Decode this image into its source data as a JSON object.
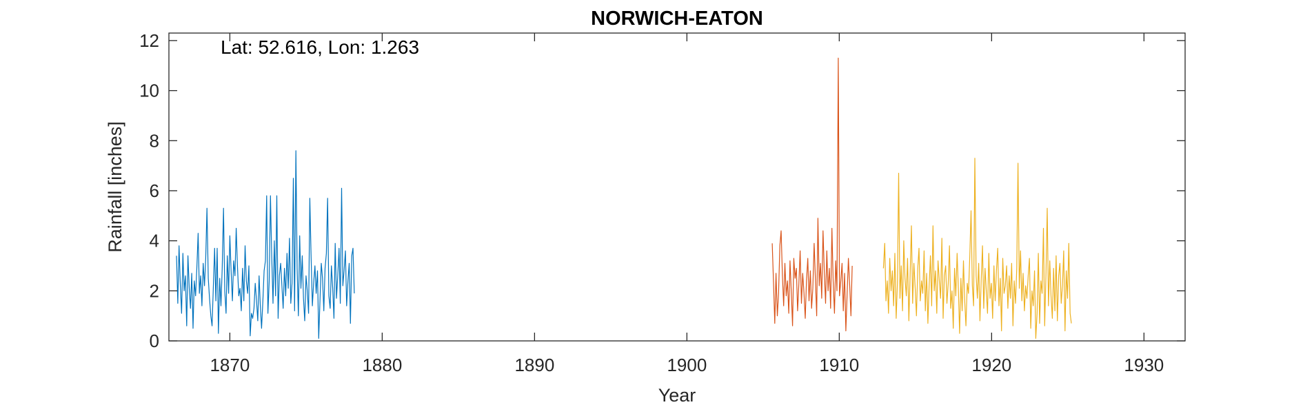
{
  "chart_data": {
    "type": "line",
    "title": "NORWICH-EATON",
    "xlabel": "Year",
    "ylabel": "Rainfall [inches]",
    "annotation": "Lat: 52.616, Lon: 1.263",
    "xlim": [
      1866,
      1932.7
    ],
    "ylim": [
      0,
      12.3
    ],
    "xticks": [
      1870,
      1880,
      1890,
      1900,
      1910,
      1920,
      1930
    ],
    "yticks": [
      0,
      2,
      4,
      6,
      8,
      10,
      12
    ],
    "grid": false,
    "series": [
      {
        "color": "#0072BD",
        "x_start": 1866.5,
        "x_step": 0.083333,
        "values": [
          3.4,
          1.5,
          3.8,
          2.2,
          1.1,
          3.5,
          2.0,
          2.6,
          0.6,
          3.4,
          2.1,
          1.3,
          2.7,
          0.5,
          2.4,
          1.8,
          2.9,
          4.3,
          1.9,
          2.6,
          1.4,
          3.1,
          2.2,
          3.3,
          5.3,
          2.5,
          1.7,
          1.0,
          0.6,
          2.2,
          3.7,
          1.6,
          3.7,
          0.3,
          2.5,
          1.4,
          2.9,
          5.3,
          2.0,
          1.1,
          3.4,
          1.9,
          4.2,
          2.8,
          1.6,
          3.2,
          2.6,
          4.5,
          3.0,
          1.8,
          2.1,
          1.2,
          2.9,
          1.6,
          3.8,
          2.4,
          1.9,
          3.0,
          0.2,
          1.1,
          0.9,
          1.3,
          2.3,
          1.6,
          0.8,
          2.6,
          1.4,
          0.5,
          1.6,
          2.8,
          3.2,
          5.8,
          1.1,
          2.4,
          5.8,
          3.3,
          1.5,
          4.0,
          1.8,
          5.8,
          0.9,
          2.6,
          3.1,
          2.2,
          1.3,
          2.9,
          1.8,
          3.5,
          2.1,
          4.1,
          1.5,
          2.3,
          6.5,
          1.2,
          7.6,
          2.9,
          1.0,
          4.2,
          2.1,
          3.4,
          1.7,
          0.8,
          2.6,
          2.0,
          1.1,
          5.7,
          3.3,
          1.4,
          2.3,
          3.0,
          1.9,
          2.8,
          0.1,
          1.6,
          3.1,
          2.5,
          1.2,
          2.9,
          3.5,
          5.7,
          1.8,
          1.3,
          3.0,
          2.1,
          0.9,
          3.9,
          1.7,
          2.6,
          3.7,
          1.5,
          6.1,
          2.2,
          2.8,
          3.6,
          1.4,
          2.4,
          3.1,
          0.7,
          3.4,
          3.7,
          1.9
        ]
      },
      {
        "color": "#D95319",
        "x_start": 1905.6,
        "x_step": 0.083333,
        "values": [
          3.9,
          2.3,
          0.7,
          2.7,
          1.0,
          1.9,
          3.8,
          4.4,
          2.6,
          1.4,
          3.1,
          1.8,
          2.4,
          1.1,
          3.2,
          2.0,
          0.6,
          3.3,
          2.5,
          2.9,
          1.2,
          2.3,
          3.6,
          1.5,
          2.7,
          1.9,
          0.9,
          2.4,
          3.3,
          1.6,
          2.8,
          1.3,
          2.1,
          3.9,
          2.5,
          1.0,
          4.9,
          2.2,
          3.1,
          1.7,
          4.4,
          2.8,
          1.5,
          3.6,
          2.0,
          2.9,
          1.3,
          4.5,
          2.4,
          1.1,
          3.2,
          2.0,
          11.3,
          1.8,
          2.4,
          3.1,
          1.2,
          2.7,
          0.4,
          1.9,
          3.3,
          2.2,
          1.0,
          3.0
        ]
      },
      {
        "color": "#EDB120",
        "x_start": 1912.9,
        "x_step": 0.083333,
        "values": [
          2.9,
          3.9,
          1.6,
          2.4,
          1.1,
          3.3,
          2.0,
          2.8,
          1.4,
          3.5,
          0.9,
          2.3,
          6.7,
          1.7,
          3.0,
          1.2,
          4.0,
          2.5,
          1.8,
          3.3,
          0.8,
          2.6,
          4.6,
          1.5,
          3.1,
          2.1,
          1.0,
          2.9,
          3.7,
          1.6,
          2.4,
          1.9,
          3.6,
          1.2,
          2.7,
          0.7,
          2.2,
          3.4,
          1.4,
          4.6,
          2.0,
          2.8,
          1.1,
          3.2,
          2.4,
          1.7,
          4.1,
          0.9,
          2.6,
          3.0,
          1.5,
          2.3,
          3.8,
          1.3,
          2.0,
          0.5,
          2.9,
          1.8,
          3.5,
          2.1,
          0.3,
          2.5,
          1.2,
          3.2,
          1.6,
          0.6,
          2.3,
          1.9,
          3.4,
          5.2,
          2.2,
          1.4,
          7.3,
          2.6,
          1.7,
          3.1,
          0.8,
          2.4,
          3.8,
          1.3,
          2.9,
          2.0,
          1.1,
          3.5,
          1.7,
          2.3,
          0.9,
          3.0,
          1.6,
          2.8,
          3.7,
          1.4,
          2.5,
          0.4,
          3.3,
          1.9,
          2.2,
          3.0,
          1.3,
          2.6,
          1.7,
          3.1,
          0.6,
          2.4,
          1.5,
          2.9,
          7.1,
          2.1,
          3.6,
          1.6,
          2.7,
          1.2,
          2.2,
          1.7,
          2.6,
          3.3,
          0.5,
          2.0,
          1.4,
          2.8,
          0.1,
          1.1,
          3.5,
          0.7,
          2.4,
          1.9,
          4.5,
          0.6,
          2.7,
          5.3,
          1.4,
          3.2,
          1.8,
          0.9,
          2.9,
          1.2,
          3.4,
          0.8,
          2.6,
          3.1,
          1.5,
          2.2,
          3.6,
          0.4,
          2.8,
          1.7,
          3.9,
          1.1,
          0.7
        ]
      }
    ]
  }
}
